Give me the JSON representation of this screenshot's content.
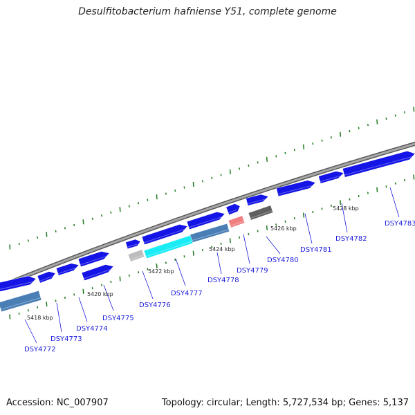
{
  "title": "Desulfitobacterium hafniense Y51, complete genome",
  "footer": {
    "accession": "Accession: NC_007907",
    "summary": "Topology: circular; Length: 5,727,534 bp; Genes: 5,137"
  },
  "colors": {
    "backbone": "#8a8a8a",
    "tick": "#1d7a1d",
    "label": "#1a1adb",
    "gene_blue": "#1414e6",
    "steel": "#4a7fb5",
    "cyan": "#19ecf5",
    "pink": "#f08080",
    "dark_gray": "#606060",
    "light_gray": "#bdbdbd"
  },
  "kbp_labels": [
    "5418 kbp",
    "5420 kbp",
    "5422 kbp",
    "5424 kbp",
    "5426 kbp",
    "5428 kbp"
  ],
  "gene_labels": [
    "DSY4772",
    "DSY4773",
    "DSY4774",
    "DSY4775",
    "DSY4776",
    "DSY4777",
    "DSY4778",
    "DSY4779",
    "DSY4780",
    "DSY4781",
    "DSY4782",
    "DSY4783"
  ]
}
